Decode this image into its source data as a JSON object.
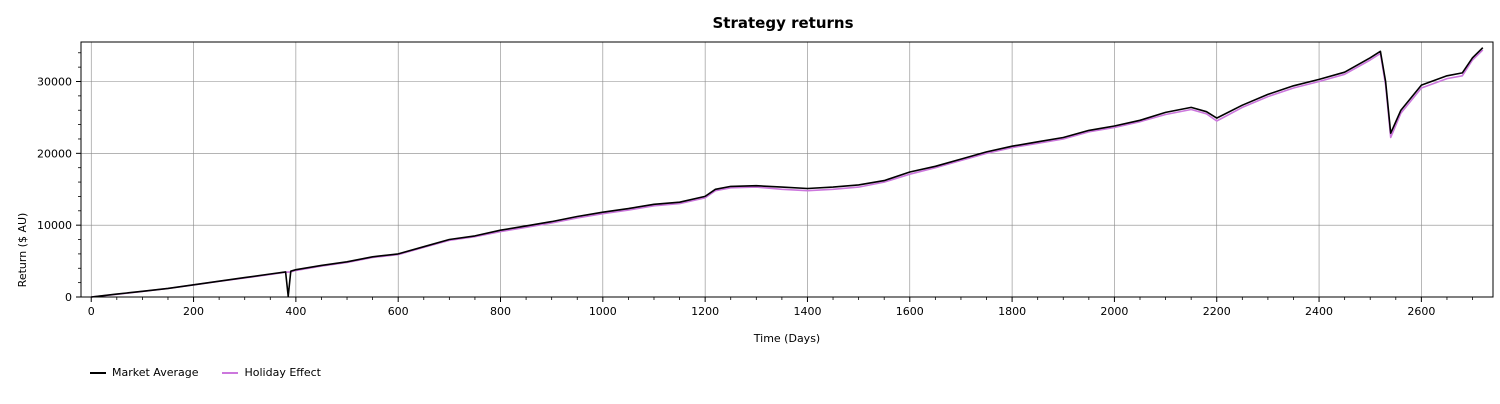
{
  "chart_data": {
    "type": "line",
    "title": "Strategy returns",
    "xlabel": "Time (Days)",
    "ylabel": "Return ($ AU)",
    "xlim": [
      -20,
      2740
    ],
    "ylim": [
      0,
      35500
    ],
    "xticks": [
      0,
      200,
      400,
      600,
      800,
      1000,
      1200,
      1400,
      1600,
      1800,
      2000,
      2200,
      2400,
      2600
    ],
    "yticks": [
      0,
      10000,
      20000,
      30000
    ],
    "grid": true,
    "legend_position": "bottom-left",
    "series": [
      {
        "name": "Market Average",
        "color": "#000000",
        "points": [
          [
            0,
            0
          ],
          [
            50,
            400
          ],
          [
            100,
            800
          ],
          [
            150,
            1200
          ],
          [
            200,
            1700
          ],
          [
            250,
            2200
          ],
          [
            300,
            2700
          ],
          [
            350,
            3200
          ],
          [
            380,
            3500
          ],
          [
            385,
            100
          ],
          [
            390,
            3600
          ],
          [
            400,
            3800
          ],
          [
            450,
            4400
          ],
          [
            500,
            4900
          ],
          [
            550,
            5600
          ],
          [
            600,
            6000
          ],
          [
            650,
            7000
          ],
          [
            700,
            8000
          ],
          [
            750,
            8500
          ],
          [
            800,
            9300
          ],
          [
            850,
            9900
          ],
          [
            900,
            10500
          ],
          [
            950,
            11200
          ],
          [
            1000,
            11800
          ],
          [
            1050,
            12300
          ],
          [
            1100,
            12900
          ],
          [
            1150,
            13200
          ],
          [
            1200,
            14000
          ],
          [
            1220,
            15000
          ],
          [
            1250,
            15400
          ],
          [
            1300,
            15500
          ],
          [
            1350,
            15300
          ],
          [
            1400,
            15100
          ],
          [
            1450,
            15300
          ],
          [
            1500,
            15600
          ],
          [
            1550,
            16200
          ],
          [
            1600,
            17400
          ],
          [
            1650,
            18200
          ],
          [
            1700,
            19200
          ],
          [
            1750,
            20200
          ],
          [
            1800,
            21000
          ],
          [
            1850,
            21600
          ],
          [
            1900,
            22200
          ],
          [
            1950,
            23200
          ],
          [
            2000,
            23800
          ],
          [
            2050,
            24600
          ],
          [
            2100,
            25700
          ],
          [
            2150,
            26400
          ],
          [
            2180,
            25800
          ],
          [
            2200,
            24900
          ],
          [
            2250,
            26700
          ],
          [
            2300,
            28200
          ],
          [
            2350,
            29400
          ],
          [
            2400,
            30300
          ],
          [
            2450,
            31300
          ],
          [
            2500,
            33300
          ],
          [
            2520,
            34200
          ],
          [
            2530,
            30000
          ],
          [
            2540,
            22800
          ],
          [
            2560,
            26000
          ],
          [
            2600,
            29500
          ],
          [
            2650,
            30800
          ],
          [
            2680,
            31200
          ],
          [
            2700,
            33300
          ],
          [
            2720,
            34700
          ]
        ]
      },
      {
        "name": "Holiday Effect",
        "color": "#cc77dd",
        "points": [
          [
            0,
            0
          ],
          [
            50,
            380
          ],
          [
            100,
            780
          ],
          [
            150,
            1180
          ],
          [
            200,
            1680
          ],
          [
            250,
            2180
          ],
          [
            300,
            2650
          ],
          [
            350,
            3150
          ],
          [
            380,
            3450
          ],
          [
            390,
            3500
          ],
          [
            400,
            3700
          ],
          [
            450,
            4300
          ],
          [
            500,
            4800
          ],
          [
            550,
            5500
          ],
          [
            600,
            5900
          ],
          [
            650,
            6900
          ],
          [
            700,
            7900
          ],
          [
            750,
            8400
          ],
          [
            800,
            9100
          ],
          [
            850,
            9700
          ],
          [
            900,
            10300
          ],
          [
            950,
            11000
          ],
          [
            1000,
            11600
          ],
          [
            1050,
            12100
          ],
          [
            1100,
            12700
          ],
          [
            1150,
            13000
          ],
          [
            1200,
            13800
          ],
          [
            1220,
            14800
          ],
          [
            1250,
            15200
          ],
          [
            1300,
            15300
          ],
          [
            1350,
            15000
          ],
          [
            1400,
            14800
          ],
          [
            1450,
            15000
          ],
          [
            1500,
            15300
          ],
          [
            1550,
            16000
          ],
          [
            1600,
            17100
          ],
          [
            1650,
            18000
          ],
          [
            1700,
            19000
          ],
          [
            1750,
            20000
          ],
          [
            1800,
            20800
          ],
          [
            1850,
            21400
          ],
          [
            1900,
            22000
          ],
          [
            1950,
            23000
          ],
          [
            2000,
            23600
          ],
          [
            2050,
            24400
          ],
          [
            2100,
            25400
          ],
          [
            2150,
            26100
          ],
          [
            2180,
            25500
          ],
          [
            2200,
            24500
          ],
          [
            2250,
            26400
          ],
          [
            2300,
            27900
          ],
          [
            2350,
            29100
          ],
          [
            2400,
            30000
          ],
          [
            2450,
            31000
          ],
          [
            2500,
            33000
          ],
          [
            2520,
            33900
          ],
          [
            2530,
            29500
          ],
          [
            2540,
            22200
          ],
          [
            2560,
            25600
          ],
          [
            2600,
            29100
          ],
          [
            2650,
            30400
          ],
          [
            2680,
            30800
          ],
          [
            2700,
            33000
          ],
          [
            2720,
            34400
          ]
        ]
      }
    ]
  }
}
